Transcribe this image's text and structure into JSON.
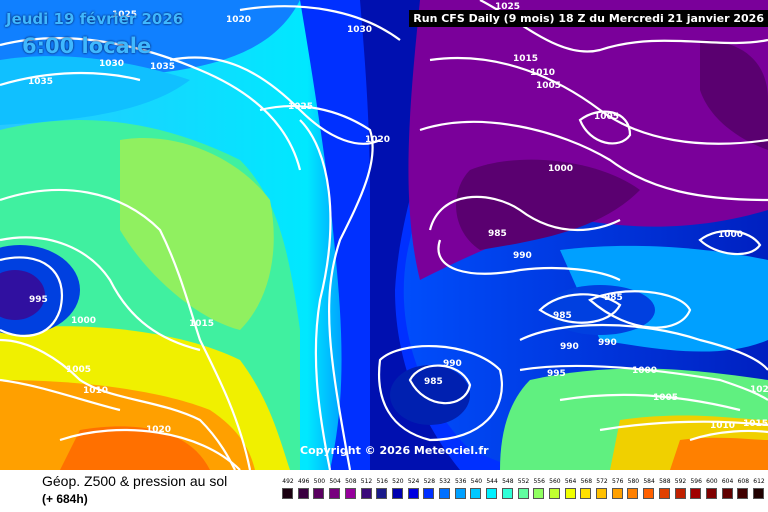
{
  "header": {
    "date": "Jeudi 19 février 2026",
    "local_time": "6:00 locale",
    "run_info": "Run CFS Daily (9 mois) 18 Z du Mercredi 21 janvier 2026"
  },
  "copyright": "Copyright © 2026 Meteociel.fr",
  "footer": {
    "title": "Géop. Z500 & pression au sol",
    "lead_time": "(+ 684h)"
  },
  "scale": {
    "labels": [
      "492",
      "496",
      "500",
      "504",
      "508",
      "512",
      "516",
      "520",
      "524",
      "528",
      "532",
      "536",
      "540",
      "544",
      "548",
      "552",
      "556",
      "560",
      "564",
      "568",
      "572",
      "576",
      "580",
      "584",
      "588",
      "592",
      "596",
      "600",
      "604",
      "608",
      "612"
    ],
    "colors": [
      "#1a0010",
      "#3a0040",
      "#5a0060",
      "#78007e",
      "#96009c",
      "#3b0a7a",
      "#1a1a8a",
      "#0000b0",
      "#0000e0",
      "#0030ff",
      "#0070ff",
      "#00a0ff",
      "#00c8ff",
      "#00f0ff",
      "#30ffd8",
      "#60ffa0",
      "#90ff60",
      "#c0ff30",
      "#f0ff00",
      "#ffe000",
      "#ffc000",
      "#ffa000",
      "#ff8000",
      "#ff6000",
      "#e04000",
      "#c02000",
      "#a00000",
      "#800000",
      "#600000",
      "#400000",
      "#200000"
    ]
  },
  "isobar_labels": [
    {
      "text": "1025"
    },
    {
      "text": "1020"
    },
    {
      "text": "1030"
    },
    {
      "text": "1035"
    },
    {
      "text": "1035"
    },
    {
      "text": "1030"
    },
    {
      "text": "1025"
    },
    {
      "text": "1020"
    },
    {
      "text": "1025"
    },
    {
      "text": "1015"
    },
    {
      "text": "1010"
    },
    {
      "text": "1005"
    },
    {
      "text": "1005"
    },
    {
      "text": "1000"
    },
    {
      "text": "985"
    },
    {
      "text": "990"
    },
    {
      "text": "1000"
    },
    {
      "text": "995"
    },
    {
      "text": "1000"
    },
    {
      "text": "1015"
    },
    {
      "text": "1005"
    },
    {
      "text": "1010"
    },
    {
      "text": "985"
    },
    {
      "text": "985"
    },
    {
      "text": "990"
    },
    {
      "text": "990"
    },
    {
      "text": "990"
    },
    {
      "text": "985"
    },
    {
      "text": "995"
    },
    {
      "text": "1000"
    },
    {
      "text": "1005"
    },
    {
      "text": "1010"
    },
    {
      "text": "1015"
    },
    {
      "text": "1020"
    },
    {
      "text": "1020"
    }
  ]
}
